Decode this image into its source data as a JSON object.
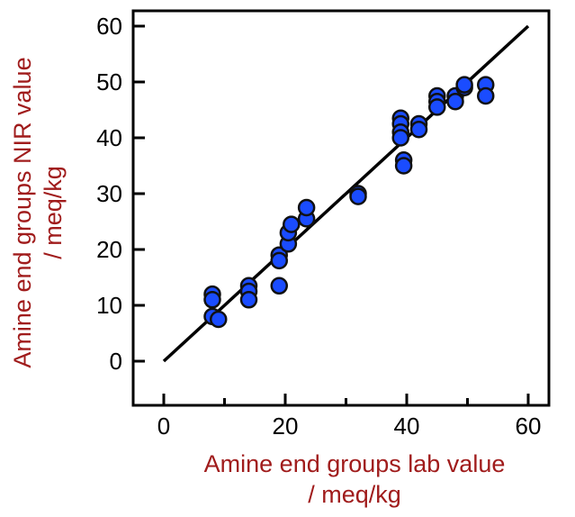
{
  "chart_data": {
    "type": "scatter",
    "title": "",
    "xlabel": [
      "Amine end groups lab value",
      "/ meq/kg"
    ],
    "ylabel": [
      "Amine end groups NIR value",
      "/ meq/kg"
    ],
    "xlim": [
      0,
      60
    ],
    "ylim": [
      0,
      60
    ],
    "xticks": [
      "0",
      "20",
      "40",
      "60"
    ],
    "yticks": [
      "0",
      "10",
      "20",
      "30",
      "40",
      "50",
      "60"
    ],
    "grid": false,
    "fit_line": {
      "x": [
        0,
        60
      ],
      "y": [
        0,
        60
      ]
    },
    "colors": {
      "points": "#1a4cff",
      "line": "#000000",
      "labels": "#a01c1c"
    },
    "points": [
      [
        8,
        12
      ],
      [
        8,
        11
      ],
      [
        8,
        8
      ],
      [
        9,
        7.5
      ],
      [
        14,
        13.5
      ],
      [
        14,
        12.5
      ],
      [
        14,
        11
      ],
      [
        19,
        19
      ],
      [
        19,
        18
      ],
      [
        19,
        13.5
      ],
      [
        20.5,
        21
      ],
      [
        20.5,
        23
      ],
      [
        21,
        24.5
      ],
      [
        23.5,
        25.5
      ],
      [
        23.5,
        27.5
      ],
      [
        32,
        30
      ],
      [
        32,
        29.5
      ],
      [
        39,
        43.5
      ],
      [
        39,
        42.5
      ],
      [
        39,
        41
      ],
      [
        39,
        40
      ],
      [
        39.5,
        36
      ],
      [
        39.5,
        35
      ],
      [
        42,
        42.5
      ],
      [
        42,
        41.5
      ],
      [
        45,
        47.5
      ],
      [
        45,
        46.5
      ],
      [
        45,
        45.5
      ],
      [
        48,
        47.5
      ],
      [
        48,
        46.5
      ],
      [
        49.5,
        49
      ],
      [
        49.5,
        49.5
      ],
      [
        53,
        49.5
      ],
      [
        53,
        47.5
      ]
    ]
  }
}
